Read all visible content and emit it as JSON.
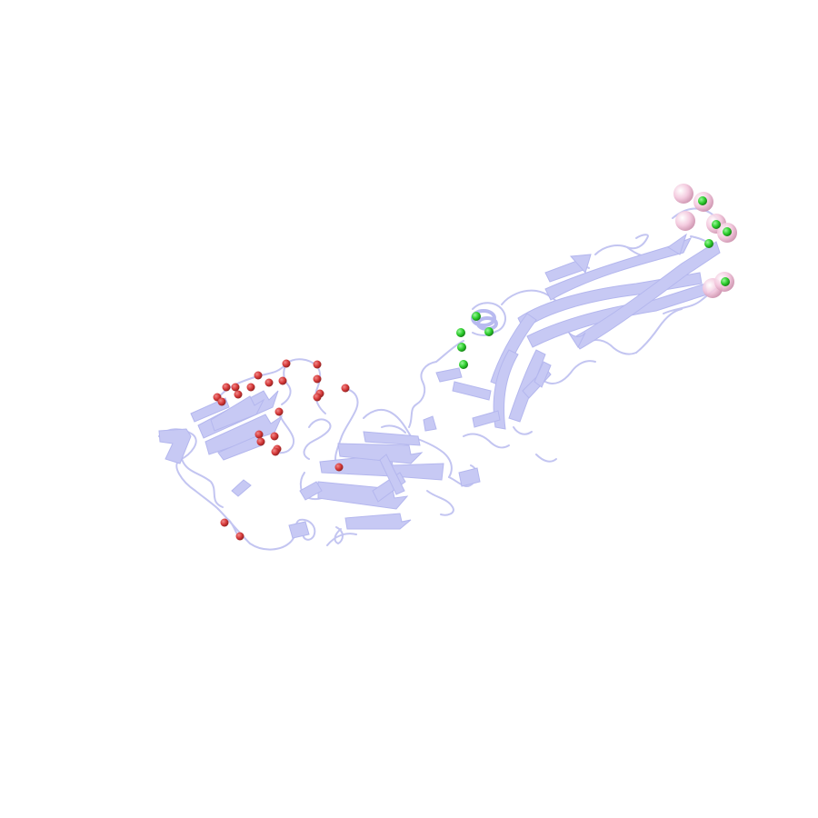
{
  "colors": {
    "background": "#ffffff",
    "cartoon_fill": "#c7c9f4",
    "cartoon_stroke": "#b4b7ee",
    "loop": "#c3c5f1",
    "red_atom": "#d63a3a",
    "green_atom": "#2fcf2f",
    "pink_atom": "#f3c6dc"
  },
  "atom_groups": [
    {
      "name": "red-atom-group",
      "count": 26
    },
    {
      "name": "green-atom-group",
      "count": 12
    },
    {
      "name": "pink-atom-group",
      "count": 6
    }
  ]
}
